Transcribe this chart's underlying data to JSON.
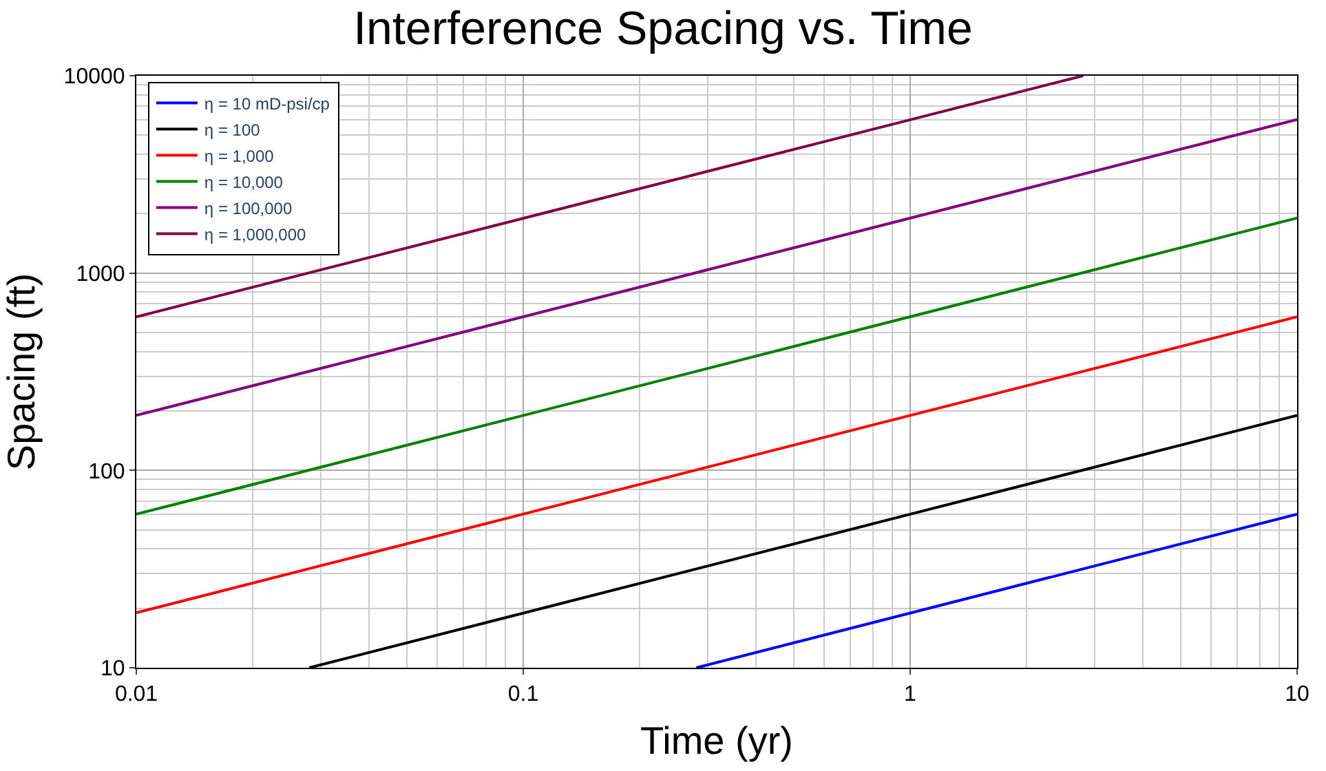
{
  "chart_data": {
    "type": "line",
    "title": "Interference Spacing vs. Time",
    "xlabel": "Time (yr)",
    "ylabel": "Spacing (ft)",
    "log": "xy",
    "grid": true,
    "legend": "top left",
    "marker": "none",
    "line_style": "solid",
    "xlim": [
      0.01,
      10
    ],
    "ylim": [
      10,
      10000
    ],
    "xticks": [
      0.01,
      0.1,
      1,
      10
    ],
    "yticks": [
      10,
      100,
      1000,
      10000
    ],
    "series": [
      {
        "name": "η = 10 mD-psi/cp",
        "color": "#0000ff",
        "x": [
          0.28,
          10
        ],
        "values": [
          10,
          60
        ]
      },
      {
        "name": "η = 100",
        "color": "#000000",
        "x": [
          0.028,
          10
        ],
        "values": [
          10,
          190
        ]
      },
      {
        "name": "η = 1,000",
        "color": "#ff0000",
        "x": [
          0.01,
          10
        ],
        "values": [
          19,
          600
        ]
      },
      {
        "name": "η = 10,000",
        "color": "#008000",
        "x": [
          0.01,
          10
        ],
        "values": [
          60,
          1900
        ]
      },
      {
        "name": "η = 100,000",
        "color": "#800080",
        "x": [
          0.01,
          10
        ],
        "values": [
          190,
          6000
        ]
      },
      {
        "name": "η = 1,000,000",
        "color": "#800040",
        "x": [
          0.01,
          2.8
        ],
        "values": [
          600,
          10000
        ]
      }
    ]
  }
}
